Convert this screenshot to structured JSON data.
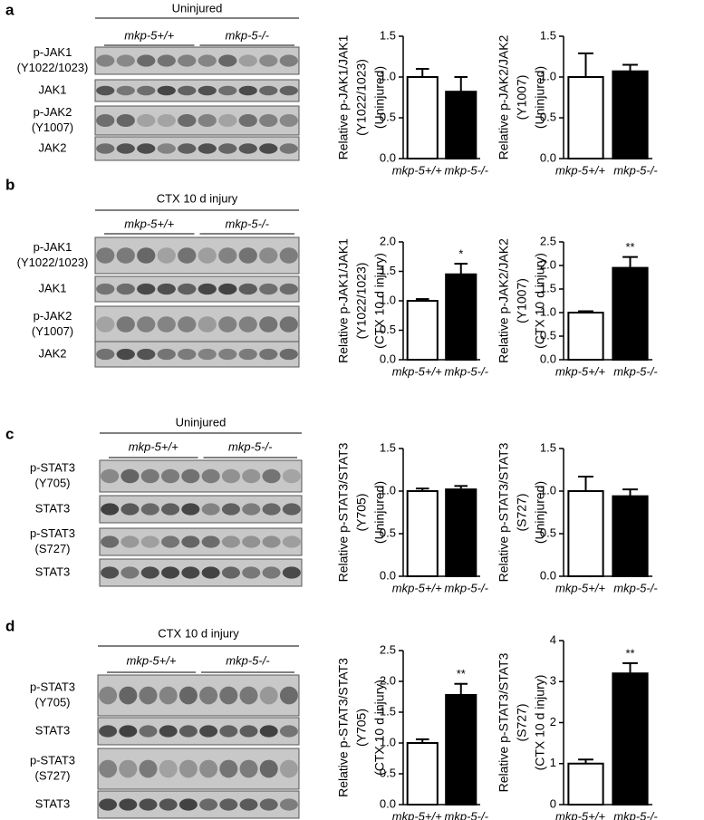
{
  "blots": [
    {
      "letter": "a",
      "header": "Uninjured",
      "genotypes": [
        "mkp-5+/+",
        "mkp-5-/-"
      ],
      "rows": [
        [
          "p-JAK1",
          "(Y1022/1023)"
        ],
        [
          "JAK1"
        ],
        [
          "p-JAK2",
          "(Y1007)"
        ],
        [
          "JAK2"
        ]
      ]
    },
    {
      "letter": "b",
      "header": "CTX 10 d injury",
      "genotypes": [
        "mkp-5+/+",
        "mkp-5-/-"
      ],
      "rows": [
        [
          "p-JAK1",
          "(Y1022/1023)"
        ],
        [
          "JAK1"
        ],
        [
          "p-JAK2",
          "(Y1007)"
        ],
        [
          "JAK2"
        ]
      ]
    },
    {
      "letter": "c",
      "header": "Uninjured",
      "genotypes": [
        "mkp-5+/+",
        "mkp-5-/-"
      ],
      "rows": [
        [
          "p-STAT3",
          "(Y705)"
        ],
        [
          "STAT3"
        ],
        [
          "p-STAT3",
          "(S727)"
        ],
        [
          "STAT3"
        ]
      ]
    },
    {
      "letter": "d",
      "header": "CTX 10 d injury",
      "genotypes": [
        "mkp-5+/+",
        "mkp-5-/-"
      ],
      "rows": [
        [
          "p-STAT3",
          "(Y705)"
        ],
        [
          "STAT3"
        ],
        [
          "p-STAT3",
          "(S727)"
        ],
        [
          "STAT3"
        ]
      ]
    }
  ],
  "chart_data": [
    {
      "type": "bar",
      "ylabel": [
        "Relative p-JAK1/JAK1",
        "(Y1022/1023)",
        "(Uninjured)"
      ],
      "categories": [
        "mkp-5+/+",
        "mkp-5-/-"
      ],
      "values": [
        1.0,
        0.82
      ],
      "errors": [
        0.1,
        0.18
      ],
      "colors": [
        "#ffffff",
        "#000000"
      ],
      "ylim": [
        0,
        1.5
      ],
      "yticks": [
        {
          "value": 0,
          "label": "0.0"
        },
        {
          "value": 0.5,
          "label": "0.5"
        },
        {
          "value": 1,
          "label": "1.0"
        },
        {
          "value": 1.5,
          "label": "1.5"
        }
      ]
    },
    {
      "type": "bar",
      "ylabel": [
        "Relative p-JAK2/JAK2",
        "(Y1007)",
        "(Uninjured)"
      ],
      "categories": [
        "mkp-5+/+",
        "mkp-5-/-"
      ],
      "values": [
        1.0,
        1.07
      ],
      "errors": [
        0.29,
        0.08
      ],
      "colors": [
        "#ffffff",
        "#000000"
      ],
      "ylim": [
        0,
        1.5
      ],
      "yticks": [
        {
          "value": 0,
          "label": "0.0"
        },
        {
          "value": 0.5,
          "label": "0.5"
        },
        {
          "value": 1,
          "label": "1.0"
        },
        {
          "value": 1.5,
          "label": "1.5"
        }
      ]
    },
    {
      "type": "bar",
      "ylabel": [
        "Relative p-JAK1/JAK1",
        "(Y1022/1023)",
        "(CTX 10 d injury)"
      ],
      "categories": [
        "mkp-5+/+",
        "mkp-5-/-"
      ],
      "values": [
        1.0,
        1.45
      ],
      "errors": [
        0.03,
        0.18
      ],
      "value_annotations": [
        null,
        "*"
      ],
      "colors": [
        "#ffffff",
        "#000000"
      ],
      "ylim": [
        0,
        2
      ],
      "yticks": [
        {
          "value": 0,
          "label": "0.0"
        },
        {
          "value": 0.5,
          "label": "0.5"
        },
        {
          "value": 1,
          "label": "1.0"
        },
        {
          "value": 1.5,
          "label": "1.5"
        },
        {
          "value": 2,
          "label": "2.0"
        }
      ]
    },
    {
      "type": "bar",
      "ylabel": [
        "Relative p-JAK2/JAK2",
        "(Y1007)",
        "(CTX 10 d injury)"
      ],
      "categories": [
        "mkp-5+/+",
        "mkp-5-/-"
      ],
      "values": [
        1.0,
        1.95
      ],
      "errors": [
        0.03,
        0.23
      ],
      "value_annotations": [
        null,
        "**"
      ],
      "colors": [
        "#ffffff",
        "#000000"
      ],
      "ylim": [
        0,
        2.5
      ],
      "yticks": [
        {
          "value": 0,
          "label": "0.0"
        },
        {
          "value": 0.5,
          "label": "0.5"
        },
        {
          "value": 1,
          "label": "1.0"
        },
        {
          "value": 1.5,
          "label": "1.5"
        },
        {
          "value": 2,
          "label": "2.0"
        },
        {
          "value": 2.5,
          "label": "2.5"
        }
      ]
    },
    {
      "type": "bar",
      "ylabel": [
        "Relative p-STAT3/STAT3",
        "(Y705)",
        "(Uninjured)"
      ],
      "categories": [
        "mkp-5+/+",
        "mkp-5-/-"
      ],
      "values": [
        1.0,
        1.02
      ],
      "errors": [
        0.03,
        0.04
      ],
      "colors": [
        "#ffffff",
        "#000000"
      ],
      "ylim": [
        0,
        1.5
      ],
      "yticks": [
        {
          "value": 0,
          "label": "0.0"
        },
        {
          "value": 0.5,
          "label": "0.5"
        },
        {
          "value": 1,
          "label": "1.0"
        },
        {
          "value": 1.5,
          "label": "1.5"
        }
      ]
    },
    {
      "type": "bar",
      "ylabel": [
        "Relative p-STAT3/STAT3",
        "(S727)",
        "(Uninjured)"
      ],
      "categories": [
        "mkp-5+/+",
        "mkp-5-/-"
      ],
      "values": [
        1.0,
        0.94
      ],
      "errors": [
        0.17,
        0.08
      ],
      "colors": [
        "#ffffff",
        "#000000"
      ],
      "ylim": [
        0,
        1.5
      ],
      "yticks": [
        {
          "value": 0,
          "label": "0.0"
        },
        {
          "value": 0.5,
          "label": "0.5"
        },
        {
          "value": 1,
          "label": "1.0"
        },
        {
          "value": 1.5,
          "label": "1.5"
        }
      ]
    },
    {
      "type": "bar",
      "ylabel": [
        "Relative p-STAT3/STAT3",
        "(Y705)",
        "(CTX 10 d injury)"
      ],
      "categories": [
        "mkp-5+/+",
        "mkp-5-/-"
      ],
      "values": [
        1.0,
        1.78
      ],
      "errors": [
        0.06,
        0.18
      ],
      "value_annotations": [
        null,
        "**"
      ],
      "colors": [
        "#ffffff",
        "#000000"
      ],
      "ylim": [
        0,
        2.5
      ],
      "yticks": [
        {
          "value": 0,
          "label": "0.0"
        },
        {
          "value": 0.5,
          "label": "0.5"
        },
        {
          "value": 1,
          "label": "1.0"
        },
        {
          "value": 1.5,
          "label": "1.5"
        },
        {
          "value": 2,
          "label": "2.0"
        },
        {
          "value": 2.5,
          "label": "2.5"
        }
      ]
    },
    {
      "type": "bar",
      "ylabel": [
        "Relative p-STAT3/STAT3",
        "(S727)",
        "(CTX 10 d injury)"
      ],
      "categories": [
        "mkp-5+/+",
        "mkp-5-/-"
      ],
      "values": [
        1.0,
        3.2
      ],
      "errors": [
        0.1,
        0.25
      ],
      "value_annotations": [
        null,
        "**"
      ],
      "colors": [
        "#ffffff",
        "#000000"
      ],
      "ylim": [
        0,
        4
      ],
      "yticks": [
        0,
        1,
        2,
        3,
        4
      ]
    }
  ]
}
